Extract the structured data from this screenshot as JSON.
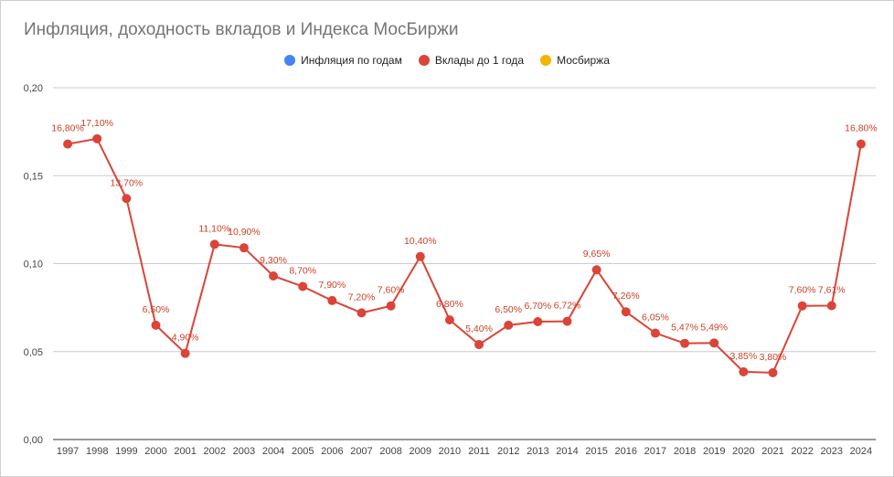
{
  "chart_data": {
    "type": "line",
    "title": "Инфляция, доходность вкладов и Индекса МосБиржи",
    "legend": [
      {
        "name": "Инфляция по годам",
        "color": "#4285f4"
      },
      {
        "name": "Вклады до 1 года",
        "color": "#db4437"
      },
      {
        "name": "Мосбиржа",
        "color": "#f4b400"
      }
    ],
    "x": [
      "1997",
      "1998",
      "1999",
      "2000",
      "2001",
      "2002",
      "2003",
      "2004",
      "2005",
      "2006",
      "2007",
      "2008",
      "2009",
      "2010",
      "2011",
      "2012",
      "2013",
      "2014",
      "2015",
      "2016",
      "2017",
      "2018",
      "2019",
      "2020",
      "2021",
      "2022",
      "2023",
      "2024"
    ],
    "series": [
      {
        "name": "Вклады до 1 года",
        "color": "#db4437",
        "values": [
          0.168,
          0.171,
          0.137,
          0.065,
          0.049,
          0.111,
          0.109,
          0.093,
          0.087,
          0.079,
          0.072,
          0.076,
          0.104,
          0.068,
          0.054,
          0.065,
          0.067,
          0.0672,
          0.0965,
          0.0726,
          0.0605,
          0.0547,
          0.0549,
          0.0385,
          0.038,
          0.076,
          0.0761,
          0.168
        ],
        "labels": [
          "16,80%",
          "17,10%",
          "13,70%",
          "6,50%",
          "4,90%",
          "11,10%",
          "10,90%",
          "9,30%",
          "8,70%",
          "7,90%",
          "7,20%",
          "7,60%",
          "10,40%",
          "6,80%",
          "5,40%",
          "6,50%",
          "6,70%",
          "6,72%",
          "9,65%",
          "7,26%",
          "6,05%",
          "5,47%",
          "5,49%",
          "3,85%",
          "3,80%",
          "7,60%",
          "7,61%",
          "16,80%"
        ]
      }
    ],
    "ylim": [
      0,
      0.2
    ],
    "yticks": [
      "0,00",
      "0,05",
      "0,10",
      "0,15",
      "0,20"
    ],
    "grid": true,
    "legend_position": "top"
  }
}
